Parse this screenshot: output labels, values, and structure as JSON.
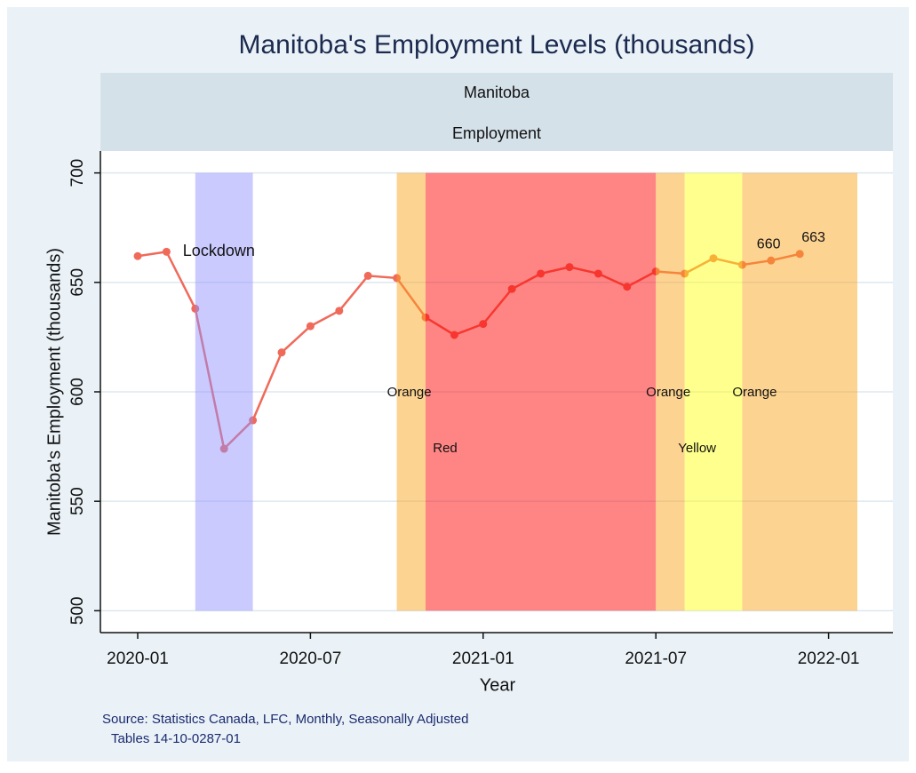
{
  "chart_data": {
    "type": "line",
    "title": "Manitoba's Employment Levels (thousands)",
    "panel_labels": [
      "Manitoba",
      "Employment"
    ],
    "x_label": "Year",
    "y_label": "Manitoba's Employment (thousands)",
    "x": [
      "2020-01",
      "2020-02",
      "2020-03",
      "2020-04",
      "2020-05",
      "2020-06",
      "2020-07",
      "2020-08",
      "2020-09",
      "2020-10",
      "2020-11",
      "2020-12",
      "2021-01",
      "2021-02",
      "2021-03",
      "2021-04",
      "2021-05",
      "2021-06",
      "2021-07",
      "2021-08",
      "2021-09",
      "2021-10",
      "2021-11",
      "2021-12"
    ],
    "series": [
      {
        "color": "#f06a5a",
        "values": [
          662,
          664,
          638,
          574,
          587,
          618,
          630,
          637,
          653,
          652,
          634,
          626,
          631,
          647,
          654,
          657,
          654,
          648,
          655,
          654,
          661,
          658,
          660,
          663
        ],
        "value_labels": [
          null,
          null,
          null,
          null,
          null,
          null,
          null,
          null,
          null,
          null,
          null,
          null,
          null,
          null,
          null,
          null,
          null,
          null,
          null,
          null,
          null,
          null,
          "660",
          "663"
        ]
      }
    ],
    "ylim": [
      490,
      710
    ],
    "yticks": [
      500,
      550,
      600,
      650,
      700
    ],
    "xticks": [
      "2020-01",
      "2020-07",
      "2021-01",
      "2021-07",
      "2022-01"
    ],
    "grid": true,
    "bands": [
      {
        "label": "Lockdown",
        "start": "2020-03",
        "end": "2020-05",
        "color": "#9090ff"
      },
      {
        "label": "Orange",
        "start": "2020-10",
        "end": "2020-11",
        "color": "#fba21a"
      },
      {
        "label": "Red",
        "start": "2020-11",
        "end": "2021-07",
        "color": "#ff0000"
      },
      {
        "label": "Orange",
        "start": "2021-07",
        "end": "2021-08",
        "color": "#fba21a"
      },
      {
        "label": "Yellow",
        "start": "2021-08",
        "end": "2021-10",
        "color": "#ffff10"
      },
      {
        "label": "Orange",
        "start": "2021-10",
        "end": "2022-02",
        "color": "#fba21a"
      }
    ],
    "notes": [
      "Source: Statistics Canada, LFC, Monthly, Seasonally Adjusted",
      "Tables 14-10-0287-01"
    ]
  }
}
